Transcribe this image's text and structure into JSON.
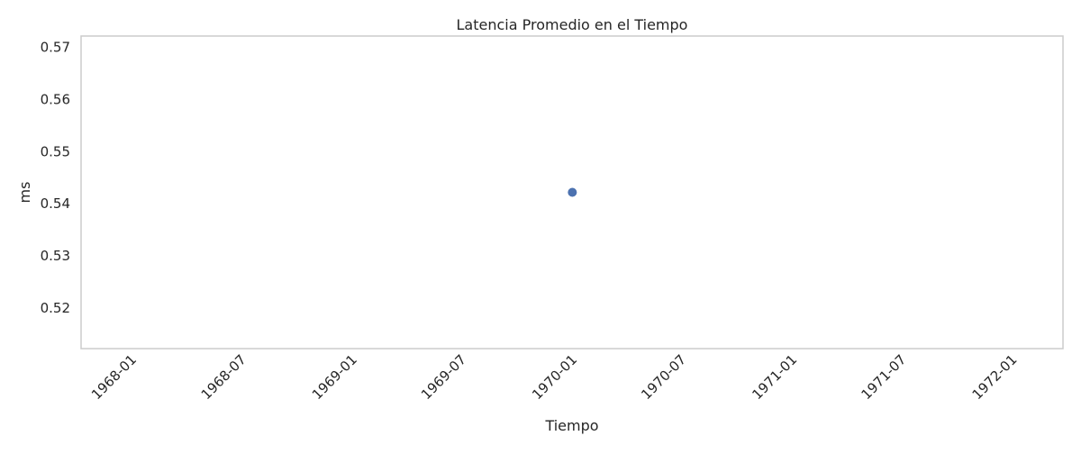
{
  "chart_data": {
    "type": "scatter",
    "title": "Latencia Promedio en el Tiempo",
    "xlabel": "Tiempo",
    "ylabel": "ms",
    "x_scale": "date",
    "xlim": [
      "1967-10-09",
      "1972-03-25"
    ],
    "ylim": [
      0.5122,
      0.5722
    ],
    "x_ticks": [
      "1968-01",
      "1968-07",
      "1969-01",
      "1969-07",
      "1970-01",
      "1970-07",
      "1971-01",
      "1971-07",
      "1972-01"
    ],
    "y_ticks": [
      0.52,
      0.53,
      0.54,
      0.55,
      0.56,
      0.57
    ],
    "grid": false,
    "points": [
      {
        "x": "1970-01-01",
        "y": 0.5422
      }
    ],
    "colors": {
      "point": "#4c72b0",
      "frame": "#cccccc",
      "text": "#262626"
    }
  }
}
